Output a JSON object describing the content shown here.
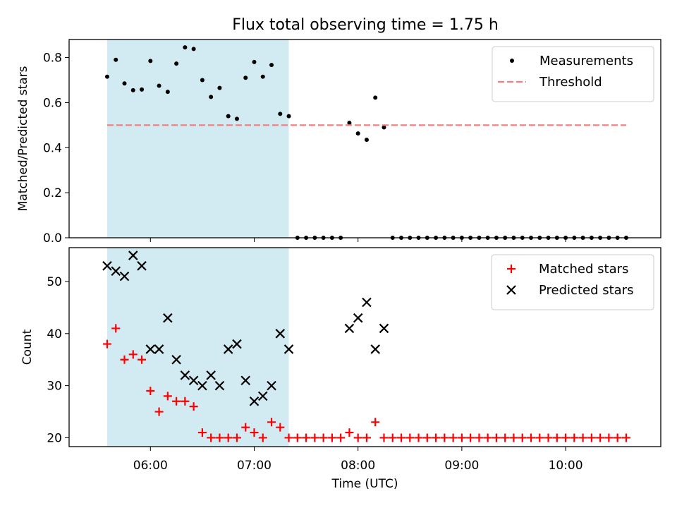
{
  "figure": {
    "title": "Flux total observing time = 1.75 h"
  },
  "chart_data": [
    {
      "type": "scatter",
      "ylabel": "Matched/Predicted stars",
      "xlabel": "",
      "ylim": [
        0,
        0.88
      ],
      "yticks": [
        0.0,
        0.2,
        0.4,
        0.6,
        0.8
      ],
      "yticklabels": [
        "0.0",
        "0.2",
        "0.4",
        "0.6",
        "0.8"
      ],
      "legend_position": "top-right",
      "shaded_interval": [
        "05:35",
        "07:20"
      ],
      "shade_color": "#add8e6",
      "series": [
        {
          "name": "Measurements",
          "marker": "dot",
          "color": "#000000",
          "points": [
            [
              "05:35",
              0.715
            ],
            [
              "05:40",
              0.79
            ],
            [
              "05:45",
              0.685
            ],
            [
              "05:50",
              0.655
            ],
            [
              "05:55",
              0.658
            ],
            [
              "06:00",
              0.785
            ],
            [
              "06:05",
              0.675
            ],
            [
              "06:10",
              0.648
            ],
            [
              "06:15",
              0.773
            ],
            [
              "06:20",
              0.845
            ],
            [
              "06:25",
              0.838
            ],
            [
              "06:30",
              0.7
            ],
            [
              "06:35",
              0.625
            ],
            [
              "06:40",
              0.665
            ],
            [
              "06:45",
              0.54
            ],
            [
              "06:50",
              0.528
            ],
            [
              "06:55",
              0.71
            ],
            [
              "07:00",
              0.78
            ],
            [
              "07:05",
              0.715
            ],
            [
              "07:10",
              0.767
            ],
            [
              "07:15",
              0.55
            ],
            [
              "07:20",
              0.54
            ],
            [
              "07:25",
              0
            ],
            [
              "07:30",
              0
            ],
            [
              "07:35",
              0
            ],
            [
              "07:40",
              0
            ],
            [
              "07:45",
              0
            ],
            [
              "07:50",
              0
            ],
            [
              "07:55",
              0.51
            ],
            [
              "08:00",
              0.463
            ],
            [
              "08:05",
              0.435
            ],
            [
              "08:10",
              0.622
            ],
            [
              "08:15",
              0.49
            ],
            [
              "08:20",
              0
            ],
            [
              "08:25",
              0
            ],
            [
              "08:30",
              0
            ],
            [
              "08:35",
              0
            ],
            [
              "08:40",
              0
            ],
            [
              "08:45",
              0
            ],
            [
              "08:50",
              0
            ],
            [
              "08:55",
              0
            ],
            [
              "09:00",
              0
            ],
            [
              "09:05",
              0
            ],
            [
              "09:10",
              0
            ],
            [
              "09:15",
              0
            ],
            [
              "09:20",
              0
            ],
            [
              "09:25",
              0
            ],
            [
              "09:30",
              0
            ],
            [
              "09:35",
              0
            ],
            [
              "09:40",
              0
            ],
            [
              "09:45",
              0
            ],
            [
              "09:50",
              0
            ],
            [
              "09:55",
              0
            ],
            [
              "10:00",
              0
            ],
            [
              "10:05",
              0
            ],
            [
              "10:10",
              0
            ],
            [
              "10:15",
              0
            ],
            [
              "10:20",
              0
            ],
            [
              "10:25",
              0
            ],
            [
              "10:30",
              0
            ],
            [
              "10:35",
              0
            ]
          ]
        },
        {
          "name": "Threshold",
          "marker": "dashed-line",
          "color": "#f08080",
          "points": [
            [
              "05:35",
              0.5
            ],
            [
              "10:35",
              0.5
            ]
          ]
        }
      ]
    },
    {
      "type": "scatter",
      "ylabel": "Count",
      "xlabel": "Time (UTC)",
      "ylim": [
        18.3,
        56.5
      ],
      "yticks": [
        20,
        30,
        40,
        50
      ],
      "yticklabels": [
        "20",
        "30",
        "40",
        "50"
      ],
      "xlim": [
        "05:13",
        "10:55"
      ],
      "xticks": [
        "06:00",
        "07:00",
        "08:00",
        "09:00",
        "10:00"
      ],
      "xticklabels": [
        "06:00",
        "07:00",
        "08:00",
        "09:00",
        "10:00"
      ],
      "legend_position": "top-right",
      "shaded_interval": [
        "05:35",
        "07:20"
      ],
      "shade_color": "#add8e6",
      "series": [
        {
          "name": "Matched stars",
          "marker": "plus",
          "color": "#ff0000",
          "points": [
            [
              "05:35",
              38
            ],
            [
              "05:40",
              41
            ],
            [
              "05:45",
              35
            ],
            [
              "05:50",
              36
            ],
            [
              "05:55",
              35
            ],
            [
              "06:00",
              29
            ],
            [
              "06:05",
              25
            ],
            [
              "06:10",
              28
            ],
            [
              "06:15",
              27
            ],
            [
              "06:20",
              27
            ],
            [
              "06:25",
              26
            ],
            [
              "06:30",
              21
            ],
            [
              "06:35",
              20
            ],
            [
              "06:40",
              20
            ],
            [
              "06:45",
              20
            ],
            [
              "06:50",
              20
            ],
            [
              "06:55",
              22
            ],
            [
              "07:00",
              21
            ],
            [
              "07:05",
              20
            ],
            [
              "07:10",
              23
            ],
            [
              "07:15",
              22
            ],
            [
              "07:20",
              20
            ],
            [
              "07:25",
              20
            ],
            [
              "07:30",
              20
            ],
            [
              "07:35",
              20
            ],
            [
              "07:40",
              20
            ],
            [
              "07:45",
              20
            ],
            [
              "07:50",
              20
            ],
            [
              "07:55",
              21
            ],
            [
              "08:00",
              20
            ],
            [
              "08:05",
              20
            ],
            [
              "08:10",
              23
            ],
            [
              "08:15",
              20
            ],
            [
              "08:20",
              20
            ],
            [
              "08:25",
              20
            ],
            [
              "08:30",
              20
            ],
            [
              "08:35",
              20
            ],
            [
              "08:40",
              20
            ],
            [
              "08:45",
              20
            ],
            [
              "08:50",
              20
            ],
            [
              "08:55",
              20
            ],
            [
              "09:00",
              20
            ],
            [
              "09:05",
              20
            ],
            [
              "09:10",
              20
            ],
            [
              "09:15",
              20
            ],
            [
              "09:20",
              20
            ],
            [
              "09:25",
              20
            ],
            [
              "09:30",
              20
            ],
            [
              "09:35",
              20
            ],
            [
              "09:40",
              20
            ],
            [
              "09:45",
              20
            ],
            [
              "09:50",
              20
            ],
            [
              "09:55",
              20
            ],
            [
              "10:00",
              20
            ],
            [
              "10:05",
              20
            ],
            [
              "10:10",
              20
            ],
            [
              "10:15",
              20
            ],
            [
              "10:20",
              20
            ],
            [
              "10:25",
              20
            ],
            [
              "10:30",
              20
            ],
            [
              "10:35",
              20
            ]
          ]
        },
        {
          "name": "Predicted stars",
          "marker": "x",
          "color": "#000000",
          "points": [
            [
              "05:35",
              53
            ],
            [
              "05:40",
              52
            ],
            [
              "05:45",
              51
            ],
            [
              "05:50",
              55
            ],
            [
              "05:55",
              53
            ],
            [
              "06:00",
              37
            ],
            [
              "06:05",
              37
            ],
            [
              "06:10",
              43
            ],
            [
              "06:15",
              35
            ],
            [
              "06:20",
              32
            ],
            [
              "06:25",
              31
            ],
            [
              "06:30",
              30
            ],
            [
              "06:35",
              32
            ],
            [
              "06:40",
              30
            ],
            [
              "06:45",
              37
            ],
            [
              "06:50",
              38
            ],
            [
              "06:55",
              31
            ],
            [
              "07:00",
              27
            ],
            [
              "07:05",
              28
            ],
            [
              "07:10",
              30
            ],
            [
              "07:15",
              40
            ],
            [
              "07:20",
              37
            ],
            [
              "07:55",
              41
            ],
            [
              "08:00",
              43
            ],
            [
              "08:05",
              46
            ],
            [
              "08:10",
              37
            ],
            [
              "08:15",
              41
            ]
          ]
        }
      ]
    }
  ]
}
